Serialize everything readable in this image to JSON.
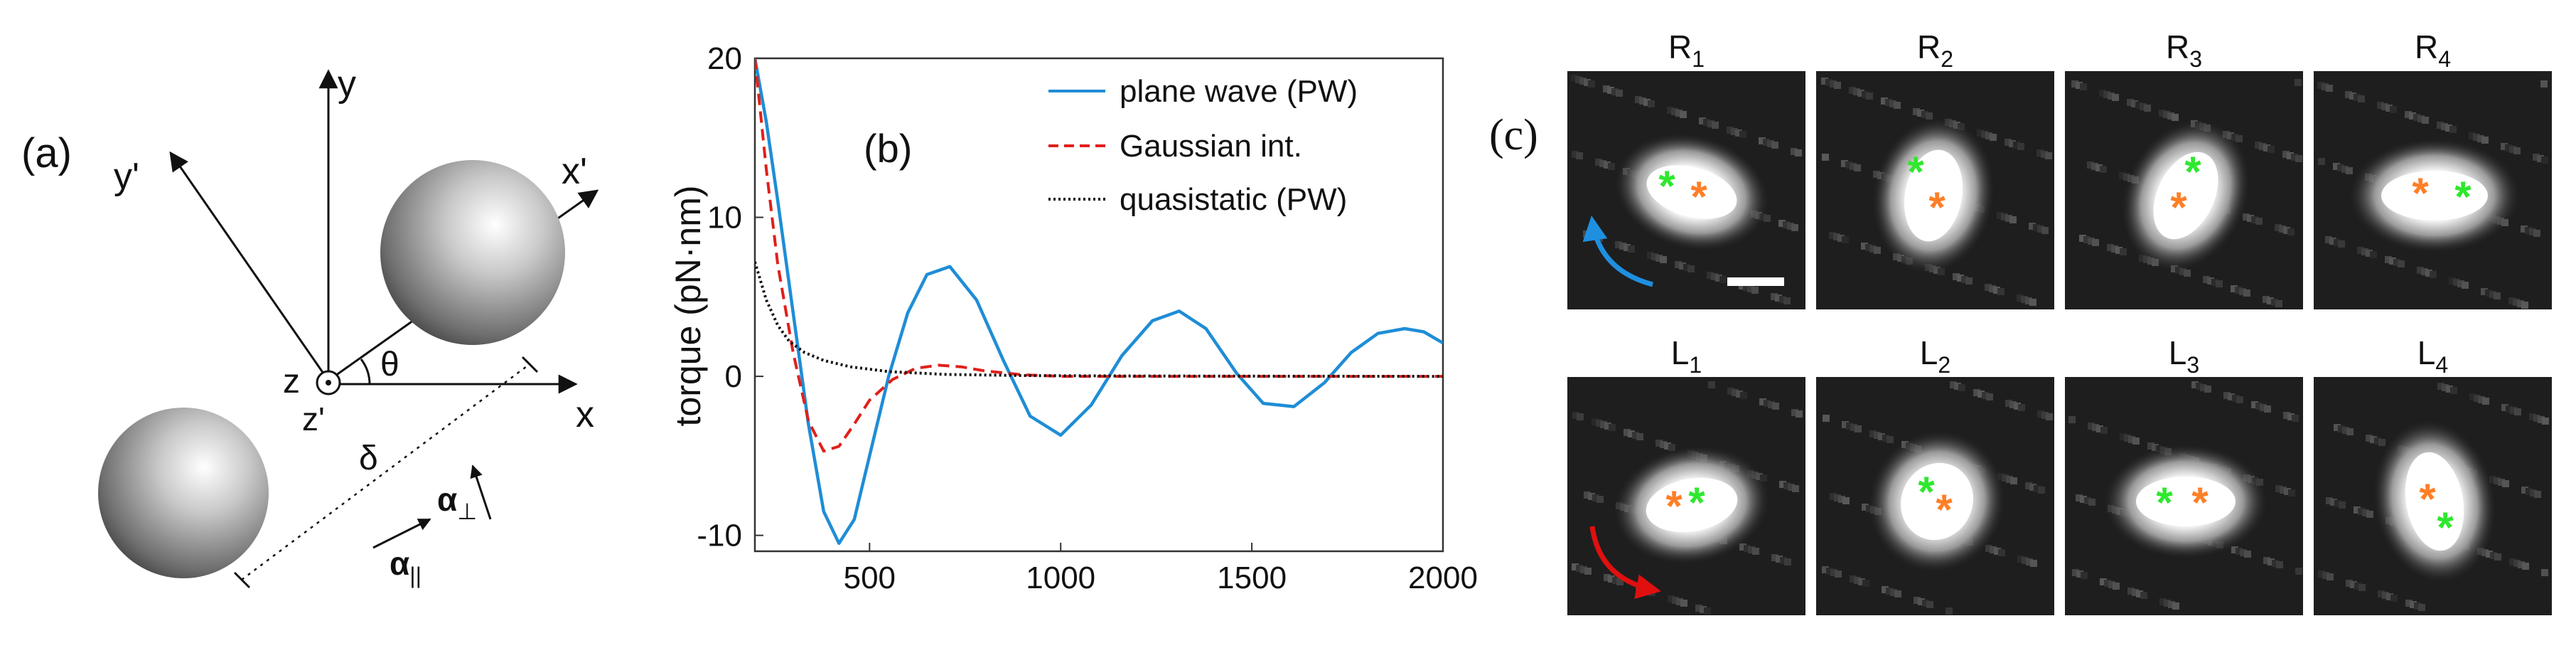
{
  "figure": {
    "panel_a": {
      "label": "(a)",
      "axis_y": "y",
      "axis_y_prime": "y'",
      "axis_x": "x",
      "axis_x_prime": "x'",
      "axis_z": "z",
      "axis_z_prime": "z'",
      "angle": "θ",
      "separation": "δ",
      "alpha_perp_symbol": "α",
      "alpha_perp_sub": "⊥",
      "alpha_par_symbol": "α",
      "alpha_par_sub": "||"
    },
    "panel_b": {
      "label": "(b)"
    },
    "panel_c": {
      "label": "(c)",
      "top_row_frames": [
        {
          "letter": "R",
          "sub": "1"
        },
        {
          "letter": "R",
          "sub": "2"
        },
        {
          "letter": "R",
          "sub": "3"
        },
        {
          "letter": "R",
          "sub": "4"
        }
      ],
      "bottom_row_frames": [
        {
          "letter": "L",
          "sub": "1"
        },
        {
          "letter": "L",
          "sub": "2"
        },
        {
          "letter": "L",
          "sub": "3"
        },
        {
          "letter": "L",
          "sub": "4"
        }
      ],
      "marker_glyph": "*",
      "colors": {
        "green_marker": "#2ee82e",
        "orange_marker": "#ff7f27",
        "arrow_R": "#1f8fe0",
        "arrow_L": "#e01010"
      }
    }
  },
  "chart_data": {
    "type": "line",
    "title": "",
    "xlabel": "",
    "ylabel": "torque (pN·nm)",
    "xlim": [
      200,
      2000
    ],
    "ylim": [
      -11,
      20
    ],
    "xticks": [
      500,
      1000,
      1500,
      2000
    ],
    "yticks": [
      -10,
      0,
      10,
      20
    ],
    "grid": false,
    "legend_position": "top-right",
    "series": [
      {
        "name": "plane wave (PW)",
        "style": "solid",
        "color": "#1f8dd6",
        "x": [
          200,
          230,
          260,
          300,
          340,
          380,
          420,
          460,
          500,
          550,
          600,
          650,
          710,
          780,
          850,
          920,
          1000,
          1080,
          1160,
          1240,
          1310,
          1380,
          1460,
          1530,
          1610,
          1690,
          1760,
          1830,
          1900,
          1950,
          2000
        ],
        "y": [
          20,
          16,
          11,
          4,
          -3,
          -8.5,
          -10.5,
          -9,
          -5,
          0,
          4,
          6.4,
          6.9,
          4.8,
          1,
          -2.5,
          -3.7,
          -1.8,
          1.3,
          3.5,
          4.1,
          3,
          0.2,
          -1.7,
          -1.9,
          -0.4,
          1.5,
          2.7,
          3,
          2.8,
          2.1
        ]
      },
      {
        "name": "Gaussian int.",
        "style": "dashed",
        "color": "#e0201a",
        "x": [
          200,
          230,
          260,
          300,
          340,
          380,
          420,
          460,
          500,
          560,
          620,
          680,
          740,
          800,
          900,
          1000,
          1200,
          1500,
          2000
        ],
        "y": [
          20,
          13,
          7,
          1.5,
          -2.8,
          -4.7,
          -4.4,
          -3,
          -1.5,
          -0.2,
          0.5,
          0.7,
          0.6,
          0.35,
          0.1,
          0,
          0,
          0,
          0
        ]
      },
      {
        "name": "quasistatic (PW)",
        "style": "dotted",
        "color": "#111111",
        "x": [
          200,
          230,
          260,
          290,
          330,
          380,
          450,
          550,
          700,
          900,
          1200,
          2000
        ],
        "y": [
          7.2,
          4.8,
          3.2,
          2.2,
          1.5,
          1.0,
          0.6,
          0.3,
          0.12,
          0.05,
          0.02,
          0
        ]
      }
    ]
  }
}
